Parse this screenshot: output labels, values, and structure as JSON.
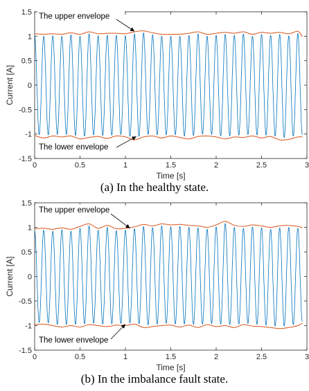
{
  "chart_data": [
    {
      "type": "line",
      "caption": "(a) In the healthy state.",
      "xlabel": "Time [s]",
      "ylabel": "Current [A]",
      "xlim": [
        0,
        3
      ],
      "ylim": [
        -1.5,
        1.5
      ],
      "x_ticks": [
        "0",
        "0.5",
        "1",
        "1.5",
        "2",
        "2.5",
        "3"
      ],
      "y_ticks": [
        "1.5",
        "1",
        "0.5",
        "0",
        "-0.5",
        "-1",
        "-1.5"
      ],
      "grid": false,
      "signal": {
        "frequency_hz": 10,
        "color": "#0072BD"
      },
      "annotations": [
        {
          "text": "The upper envelope",
          "x": 1.1,
          "y": 1.1
        },
        {
          "text": "The lower envelope",
          "x": 1.12,
          "y": -1.05
        }
      ],
      "series": [
        {
          "color": "#D95319",
          "x": [
            0,
            0.1,
            0.2,
            0.3,
            0.4,
            0.5,
            0.6,
            0.7,
            0.8,
            0.9,
            1.0,
            1.1,
            1.2,
            1.3,
            1.4,
            1.5,
            1.6,
            1.7,
            1.8,
            1.9,
            2.0,
            2.1,
            2.2,
            2.3,
            2.4,
            2.5,
            2.6,
            2.7,
            2.8,
            2.9,
            2.95
          ],
          "y": [
            1.05,
            1.04,
            1.05,
            1.04,
            1.07,
            1.04,
            1.09,
            1.05,
            1.06,
            1.06,
            1.05,
            1.09,
            1.11,
            1.07,
            1.04,
            1.04,
            1.04,
            1.06,
            1.09,
            1.04,
            1.06,
            1.08,
            1.06,
            1.09,
            1.04,
            1.08,
            1.06,
            1.08,
            1.05,
            1.1,
            0.99
          ]
        },
        {
          "color": "#D95319",
          "x": [
            0,
            0.1,
            0.2,
            0.3,
            0.4,
            0.5,
            0.6,
            0.7,
            0.8,
            0.9,
            1.0,
            1.1,
            1.2,
            1.3,
            1.4,
            1.5,
            1.6,
            1.7,
            1.8,
            1.9,
            2.0,
            2.1,
            2.2,
            2.3,
            2.4,
            2.5,
            2.6,
            2.7,
            2.8,
            2.9,
            2.95
          ],
          "y": [
            -1.03,
            -1.08,
            -1.04,
            -1.06,
            -1.04,
            -1.1,
            -1.07,
            -1.05,
            -1.09,
            -1.04,
            -1.06,
            -1.12,
            -1.06,
            -1.04,
            -1.08,
            -1.04,
            -1.07,
            -1.1,
            -1.05,
            -1.04,
            -1.06,
            -1.1,
            -1.06,
            -1.07,
            -1.04,
            -1.08,
            -1.05,
            -1.12,
            -1.11,
            -1.06,
            -1.06
          ]
        }
      ]
    },
    {
      "type": "line",
      "caption": "(b) In the imbalance fault state.",
      "xlabel": "Time [s]",
      "ylabel": "Current [A]",
      "xlim": [
        0,
        3
      ],
      "ylim": [
        -1.5,
        1.5
      ],
      "x_ticks": [
        "0",
        "0.5",
        "1",
        "1.5",
        "2",
        "2.5",
        "3"
      ],
      "y_ticks": [
        "1.5",
        "1",
        "0.5",
        "0",
        "-0.5",
        "-1",
        "-1.5"
      ],
      "grid": false,
      "signal": {
        "frequency_hz": 10,
        "color": "#0072BD"
      },
      "annotations": [
        {
          "text": "The upper envelope",
          "x": 1.05,
          "y": 0.98
        },
        {
          "text": "The lower envelope",
          "x": 1.0,
          "y": -0.97
        }
      ],
      "series": [
        {
          "color": "#D95319",
          "x": [
            0,
            0.1,
            0.2,
            0.3,
            0.4,
            0.5,
            0.6,
            0.7,
            0.8,
            0.9,
            1.0,
            1.1,
            1.2,
            1.3,
            1.4,
            1.5,
            1.6,
            1.7,
            1.8,
            1.9,
            2.0,
            2.1,
            2.2,
            2.3,
            2.4,
            2.5,
            2.6,
            2.7,
            2.8,
            2.9,
            2.95
          ],
          "y": [
            0.97,
            0.98,
            0.96,
            0.99,
            0.96,
            1.02,
            1.07,
            0.98,
            1.04,
            0.97,
            0.98,
            1.01,
            1.06,
            1.03,
            1.07,
            1.05,
            1.06,
            1.04,
            1.03,
            1.0,
            1.05,
            1.12,
            1.04,
            1.02,
            1.05,
            1.03,
            1.0,
            1.03,
            1.04,
            1.02,
            0.99
          ]
        },
        {
          "color": "#D95319",
          "x": [
            0,
            0.1,
            0.2,
            0.3,
            0.4,
            0.5,
            0.6,
            0.7,
            0.8,
            0.9,
            1.0,
            1.1,
            1.2,
            1.3,
            1.4,
            1.5,
            1.6,
            1.7,
            1.8,
            1.9,
            2.0,
            2.1,
            2.2,
            2.3,
            2.4,
            2.5,
            2.6,
            2.7,
            2.8,
            2.9,
            2.95
          ],
          "y": [
            -0.98,
            -0.97,
            -1.0,
            -1.03,
            -1.0,
            -1.03,
            -0.98,
            -1.0,
            -1.02,
            -0.99,
            -1.0,
            -0.97,
            -1.04,
            -1.02,
            -1.0,
            -0.99,
            -1.03,
            -0.99,
            -1.04,
            -0.98,
            -1.02,
            -1.0,
            -1.04,
            -0.98,
            -1.01,
            -1.02,
            -1.04,
            -1.06,
            -1.04,
            -1.0,
            -0.95
          ]
        }
      ]
    }
  ]
}
